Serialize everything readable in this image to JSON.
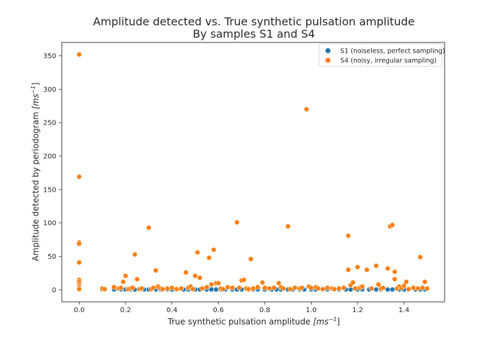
{
  "chart_data": {
    "type": "scatter",
    "title": "Amplitude detected vs. True synthetic pulsation amplitude",
    "subtitle": "By samples S1 and S4",
    "xlabel_main": "True synthetic pulsation amplitude ",
    "xlabel_unit": "[ms",
    "xlabel_exp": "−1",
    "xlabel_close": "]",
    "ylabel_main": "Amplitude detected by periodogram ",
    "ylabel_unit": "[ms",
    "ylabel_exp": "−1",
    "ylabel_close": "]",
    "xlim": [
      -0.075,
      1.575
    ],
    "ylim": [
      -18,
      370
    ],
    "xticks": [
      0.0,
      0.2,
      0.4,
      0.6,
      0.8,
      1.0,
      1.2,
      1.4
    ],
    "xtick_labels": [
      "0.0",
      "0.2",
      "0.4",
      "0.6",
      "0.8",
      "1.0",
      "1.2",
      "1.4"
    ],
    "yticks": [
      0,
      50,
      100,
      150,
      200,
      250,
      300,
      350
    ],
    "ytick_labels": [
      "0",
      "50",
      "100",
      "150",
      "200",
      "250",
      "300",
      "350"
    ],
    "grid": false,
    "legend_position": "top-right",
    "series": [
      {
        "name": "S1 (noiseless, perfect sampling)",
        "color": "#1f77b4",
        "points": [
          [
            0.1,
            0.5
          ],
          [
            0.11,
            0.4
          ],
          [
            0.15,
            0.5
          ],
          [
            0.18,
            0.6
          ],
          [
            0.2,
            0.5
          ],
          [
            0.22,
            0.5
          ],
          [
            0.24,
            0.4
          ],
          [
            0.26,
            0.6
          ],
          [
            0.28,
            0.5
          ],
          [
            0.3,
            0.5
          ],
          [
            0.33,
            0.6
          ],
          [
            0.35,
            0.5
          ],
          [
            0.38,
            0.5
          ],
          [
            0.4,
            0.4
          ],
          [
            0.42,
            0.6
          ],
          [
            0.45,
            0.5
          ],
          [
            0.47,
            0.5
          ],
          [
            0.5,
            0.6
          ],
          [
            0.52,
            0.5
          ],
          [
            0.55,
            0.5
          ],
          [
            0.57,
            0.6
          ],
          [
            0.59,
            0.5
          ],
          [
            0.61,
            0.5
          ],
          [
            0.63,
            0.6
          ],
          [
            0.66,
            0.5
          ],
          [
            0.68,
            0.5
          ],
          [
            0.7,
            0.6
          ],
          [
            0.73,
            0.5
          ],
          [
            0.75,
            0.5
          ],
          [
            0.77,
            0.6
          ],
          [
            0.8,
            0.5
          ],
          [
            0.83,
            0.5
          ],
          [
            0.85,
            0.6
          ],
          [
            0.87,
            0.5
          ],
          [
            0.9,
            0.5
          ],
          [
            0.92,
            0.6
          ],
          [
            0.95,
            0.5
          ],
          [
            0.97,
            0.5
          ],
          [
            1.0,
            0.6
          ],
          [
            1.02,
            0.5
          ],
          [
            1.05,
            0.5
          ],
          [
            1.07,
            0.6
          ],
          [
            1.1,
            0.5
          ],
          [
            1.12,
            0.5
          ],
          [
            1.15,
            0.6
          ],
          [
            1.17,
            0.5
          ],
          [
            1.2,
            0.5
          ],
          [
            1.22,
            0.6
          ],
          [
            1.25,
            0.5
          ],
          [
            1.28,
            0.5
          ],
          [
            1.3,
            0.6
          ],
          [
            1.33,
            0.5
          ],
          [
            1.35,
            0.5
          ],
          [
            1.38,
            0.6
          ],
          [
            1.4,
            0.5
          ],
          [
            1.42,
            0.5
          ],
          [
            1.45,
            0.6
          ],
          [
            1.47,
            0.5
          ],
          [
            1.49,
            0.5
          ]
        ]
      },
      {
        "name": "S4 (noisy, irregular sampling)",
        "color": "#ff7f0e",
        "points": [
          [
            0.0,
            352
          ],
          [
            0.0,
            169
          ],
          [
            0.0,
            71
          ],
          [
            0.0,
            69
          ],
          [
            0.0,
            41
          ],
          [
            0.0,
            15
          ],
          [
            0.0,
            12
          ],
          [
            0.0,
            8
          ],
          [
            0.0,
            5
          ],
          [
            0.0,
            3
          ],
          [
            0.0,
            1
          ],
          [
            0.1,
            2
          ],
          [
            0.11,
            1
          ],
          [
            0.15,
            4
          ],
          [
            0.17,
            2
          ],
          [
            0.18,
            3
          ],
          [
            0.19,
            12
          ],
          [
            0.2,
            21
          ],
          [
            0.21,
            1
          ],
          [
            0.22,
            2
          ],
          [
            0.23,
            3
          ],
          [
            0.24,
            53
          ],
          [
            0.25,
            16
          ],
          [
            0.26,
            1
          ],
          [
            0.27,
            2
          ],
          [
            0.3,
            93
          ],
          [
            0.31,
            1
          ],
          [
            0.32,
            3
          ],
          [
            0.33,
            29
          ],
          [
            0.34,
            5
          ],
          [
            0.35,
            2
          ],
          [
            0.36,
            1
          ],
          [
            0.38,
            2
          ],
          [
            0.4,
            3
          ],
          [
            0.42,
            1
          ],
          [
            0.44,
            2
          ],
          [
            0.46,
            26
          ],
          [
            0.47,
            3
          ],
          [
            0.48,
            5
          ],
          [
            0.49,
            1
          ],
          [
            0.5,
            21
          ],
          [
            0.51,
            56
          ],
          [
            0.52,
            18
          ],
          [
            0.53,
            2
          ],
          [
            0.55,
            4
          ],
          [
            0.56,
            48
          ],
          [
            0.57,
            8
          ],
          [
            0.58,
            60
          ],
          [
            0.59,
            10
          ],
          [
            0.6,
            10
          ],
          [
            0.61,
            2
          ],
          [
            0.62,
            1
          ],
          [
            0.64,
            4
          ],
          [
            0.66,
            3
          ],
          [
            0.68,
            101
          ],
          [
            0.69,
            3
          ],
          [
            0.7,
            14
          ],
          [
            0.71,
            15
          ],
          [
            0.72,
            2
          ],
          [
            0.73,
            1
          ],
          [
            0.74,
            46
          ],
          [
            0.75,
            2
          ],
          [
            0.77,
            4
          ],
          [
            0.79,
            11
          ],
          [
            0.8,
            3
          ],
          [
            0.82,
            2
          ],
          [
            0.84,
            3
          ],
          [
            0.86,
            10
          ],
          [
            0.87,
            4
          ],
          [
            0.88,
            2
          ],
          [
            0.9,
            95
          ],
          [
            0.91,
            1
          ],
          [
            0.93,
            3
          ],
          [
            0.95,
            2
          ],
          [
            0.96,
            3
          ],
          [
            0.98,
            270
          ],
          [
            0.99,
            5
          ],
          [
            1.0,
            3
          ],
          [
            1.02,
            4
          ],
          [
            1.03,
            2
          ],
          [
            1.05,
            1
          ],
          [
            1.07,
            3
          ],
          [
            1.09,
            2
          ],
          [
            1.1,
            1
          ],
          [
            1.12,
            2
          ],
          [
            1.14,
            3
          ],
          [
            1.16,
            81
          ],
          [
            1.16,
            30
          ],
          [
            1.17,
            7
          ],
          [
            1.18,
            11
          ],
          [
            1.19,
            2
          ],
          [
            1.2,
            34
          ],
          [
            1.21,
            3
          ],
          [
            1.22,
            5
          ],
          [
            1.24,
            30
          ],
          [
            1.26,
            2
          ],
          [
            1.28,
            36
          ],
          [
            1.29,
            8
          ],
          [
            1.3,
            2
          ],
          [
            1.31,
            3
          ],
          [
            1.33,
            32
          ],
          [
            1.34,
            95
          ],
          [
            1.35,
            97
          ],
          [
            1.36,
            27
          ],
          [
            1.36,
            16
          ],
          [
            1.37,
            2
          ],
          [
            1.38,
            5
          ],
          [
            1.39,
            3
          ],
          [
            1.4,
            6
          ],
          [
            1.41,
            12
          ],
          [
            1.42,
            1
          ],
          [
            1.44,
            3
          ],
          [
            1.46,
            2
          ],
          [
            1.47,
            49
          ],
          [
            1.48,
            3
          ],
          [
            1.49,
            12
          ],
          [
            1.5,
            2
          ]
        ]
      }
    ]
  }
}
